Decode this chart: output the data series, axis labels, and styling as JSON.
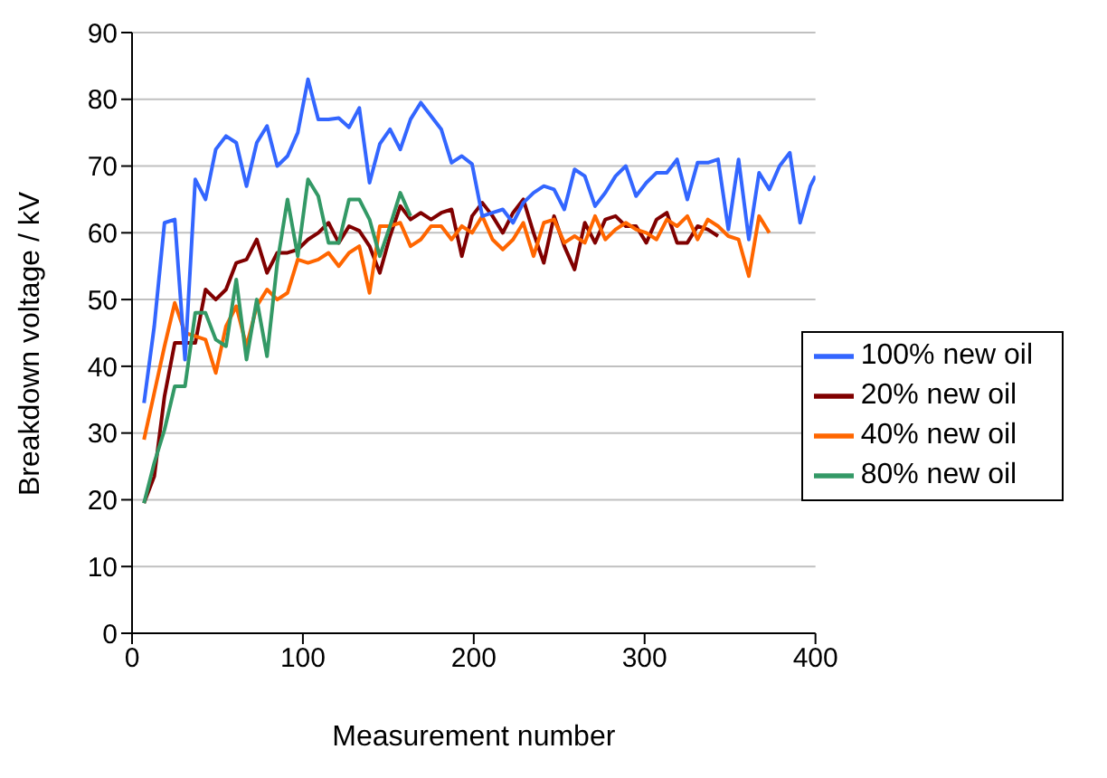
{
  "chart_data": {
    "type": "line",
    "xlabel": "Measurement number",
    "ylabel": "Breakdown voltage / kV",
    "xlim": [
      0,
      400
    ],
    "xticks": [
      0,
      100,
      200,
      300,
      400
    ],
    "ylim": [
      0,
      90
    ],
    "yticks": [
      0,
      10,
      20,
      30,
      40,
      50,
      60,
      70,
      80,
      90
    ],
    "grid": "y",
    "legend": "right",
    "marker": "none",
    "line_style": "solid",
    "series": [
      {
        "name": "20% new oil",
        "color": "#800000",
        "x": [
          7,
          13,
          19,
          25,
          31,
          37,
          43,
          49,
          55,
          61,
          67,
          73,
          79,
          85,
          91,
          97,
          103,
          109,
          115,
          121,
          127,
          133,
          139,
          145,
          151,
          157,
          163,
          169,
          175,
          181,
          187,
          193,
          199,
          205,
          211,
          217,
          223,
          229,
          235,
          241,
          247,
          253,
          259,
          265,
          271,
          277,
          283,
          289,
          295,
          301,
          307,
          313,
          319,
          325,
          331,
          337,
          343
        ],
        "values": [
          19.5,
          23.5,
          35.5,
          43.5,
          43.5,
          43.5,
          51.5,
          50,
          51.5,
          55.5,
          56,
          59,
          54,
          57,
          57,
          57.5,
          59,
          60,
          61.5,
          58.5,
          61,
          60.3,
          58,
          54,
          59.5,
          64,
          62,
          63,
          62,
          63,
          63.5,
          56.5,
          62.5,
          64.5,
          62.5,
          60,
          63,
          65,
          60,
          55.5,
          62.5,
          58,
          54.5,
          61.5,
          58.5,
          62,
          62.5,
          61,
          61,
          58.5,
          62,
          63,
          58.5,
          58.5,
          61,
          60.5,
          59.5
        ]
      },
      {
        "name": "40% new oil",
        "color": "#ff6600",
        "x": [
          7,
          13,
          19,
          25,
          31,
          37,
          43,
          49,
          55,
          61,
          67,
          73,
          79,
          85,
          91,
          97,
          103,
          109,
          115,
          121,
          127,
          133,
          139,
          145,
          151,
          157,
          163,
          169,
          175,
          181,
          187,
          193,
          199,
          205,
          211,
          217,
          223,
          229,
          235,
          241,
          247,
          253,
          259,
          265,
          271,
          277,
          283,
          289,
          295,
          301,
          307,
          313,
          319,
          325,
          331,
          337,
          343,
          349,
          355,
          361,
          367,
          373
        ],
        "values": [
          29,
          36,
          43,
          49.5,
          45,
          44.5,
          44,
          39,
          46,
          49,
          43,
          49,
          51.5,
          50,
          51,
          56,
          55.5,
          56,
          57,
          55,
          57,
          58,
          51,
          61,
          61,
          61.5,
          58,
          59,
          61,
          61,
          59,
          61,
          60,
          62.5,
          59,
          57.5,
          59,
          61.5,
          56.5,
          61.5,
          62,
          58.5,
          59.5,
          58.5,
          62.5,
          59,
          60.5,
          61.5,
          60.5,
          60,
          59,
          62,
          61,
          62.5,
          59,
          62,
          61,
          59.5,
          59,
          53.5,
          62.5,
          60
        ]
      },
      {
        "name": "80% new oil",
        "color": "#339966",
        "x": [
          7,
          13,
          19,
          25,
          31,
          37,
          43,
          49,
          55,
          61,
          67,
          73,
          79,
          85,
          91,
          97,
          103,
          109,
          115,
          121,
          127,
          133,
          139,
          145,
          151,
          157,
          163
        ],
        "values": [
          19.5,
          25.5,
          30.5,
          37,
          37,
          48,
          48,
          44,
          43,
          53,
          41,
          50,
          41.5,
          55.5,
          65,
          56.5,
          68,
          65.5,
          58.5,
          58.5,
          65,
          65,
          62,
          56.5,
          61,
          66,
          62.5
        ]
      },
      {
        "name": "100% new oil",
        "color": "#3366ff",
        "x": [
          7,
          13,
          19,
          25,
          31,
          37,
          43,
          49,
          55,
          61,
          67,
          73,
          79,
          85,
          91,
          97,
          103,
          109,
          115,
          121,
          127,
          133,
          139,
          145,
          151,
          157,
          163,
          169,
          175,
          181,
          187,
          193,
          199,
          205,
          211,
          217,
          223,
          229,
          235,
          241,
          247,
          253,
          259,
          265,
          271,
          277,
          283,
          289,
          295,
          301,
          307,
          313,
          319,
          325,
          331,
          337,
          343,
          349,
          355,
          361,
          367,
          373,
          379,
          385,
          391,
          397,
          400
        ],
        "values": [
          34.5,
          46,
          61.5,
          62,
          41,
          68,
          65,
          72.5,
          74.5,
          73.5,
          67,
          73.5,
          76,
          70,
          71.5,
          75,
          83,
          77,
          77,
          77.2,
          75.8,
          78.7,
          67.5,
          73.3,
          75.5,
          72.5,
          77,
          79.5,
          77.5,
          75.5,
          70.5,
          71.5,
          70.3,
          62.5,
          63,
          63.5,
          61.5,
          64.5,
          66,
          67,
          66.5,
          63.5,
          69.5,
          68.5,
          64,
          66,
          68.5,
          70,
          65.5,
          67.5,
          69,
          69,
          71,
          65,
          70.5,
          70.5,
          71,
          60.5,
          71,
          59,
          69,
          66.5,
          70,
          72,
          61.5,
          67,
          68.5
        ]
      }
    ]
  }
}
